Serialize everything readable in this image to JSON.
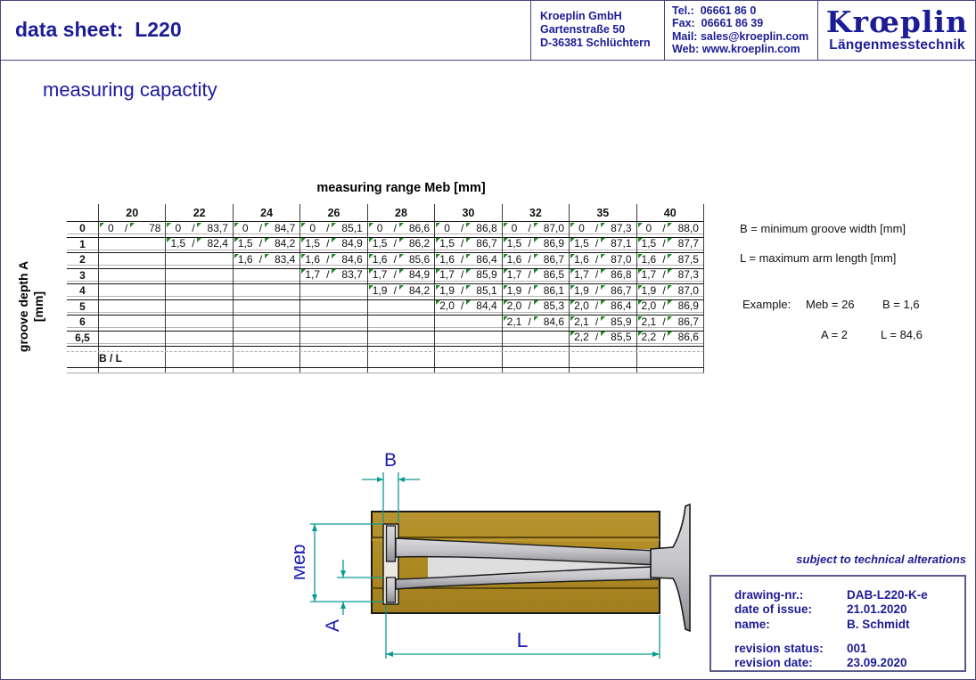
{
  "colors": {
    "navy": "#1c1c96",
    "gold": "#ae8a23",
    "teal": "#0c9a90",
    "dim_label_blue": "#1a1ab0",
    "marker_green": "#1e8a1e"
  },
  "header": {
    "title": "data sheet:  L220",
    "company_lines": [
      "Kroeplin GmbH",
      "Gartenstraße 50",
      "D-36381 Schlüchtern"
    ],
    "contact_lines": [
      "Tel.:  06661 86 0",
      "Fax:  06661 86 39",
      "Mail: sales@kroeplin.com",
      "Web: www.kroeplin.com"
    ],
    "logo_title": "Krœplin",
    "logo_subtitle": "Längenmesstechnik"
  },
  "section_title": "measuring capactity",
  "table": {
    "title": "measuring range Meb [mm]",
    "row_axis_line1": "groove depth A",
    "row_axis_line2": "[mm]",
    "columns": [
      "20",
      "22",
      "24",
      "26",
      "28",
      "30",
      "32",
      "35",
      "40"
    ],
    "rows": [
      {
        "label": "0",
        "cells": [
          [
            "0",
            "78"
          ],
          [
            "0",
            "83,7"
          ],
          [
            "0",
            "84,7"
          ],
          [
            "0",
            "85,1"
          ],
          [
            "0",
            "86,6"
          ],
          [
            "0",
            "86,8"
          ],
          [
            "0",
            "87,0"
          ],
          [
            "0",
            "87,3"
          ],
          [
            "0",
            "88,0"
          ]
        ]
      },
      {
        "label": "1",
        "cells": [
          null,
          [
            "1,5",
            "82,4"
          ],
          [
            "1,5",
            "84,2"
          ],
          [
            "1,5",
            "84,9"
          ],
          [
            "1,5",
            "86,2"
          ],
          [
            "1,5",
            "86,7"
          ],
          [
            "1,5",
            "86,9"
          ],
          [
            "1,5",
            "87,1"
          ],
          [
            "1,5",
            "87,7"
          ]
        ]
      },
      {
        "label": "2",
        "cells": [
          null,
          null,
          [
            "1,6",
            "83,4"
          ],
          [
            "1,6",
            "84,6"
          ],
          [
            "1,6",
            "85,6"
          ],
          [
            "1,6",
            "86,4"
          ],
          [
            "1,6",
            "86,7"
          ],
          [
            "1,6",
            "87,0"
          ],
          [
            "1,6",
            "87,5"
          ]
        ]
      },
      {
        "label": "3",
        "cells": [
          null,
          null,
          null,
          [
            "1,7",
            "83,7"
          ],
          [
            "1,7",
            "84,9"
          ],
          [
            "1,7",
            "85,9"
          ],
          [
            "1,7",
            "86,5"
          ],
          [
            "1,7",
            "86,8"
          ],
          [
            "1,7",
            "87,3"
          ]
        ]
      },
      {
        "label": "4",
        "cells": [
          null,
          null,
          null,
          null,
          [
            "1,9",
            "84,2"
          ],
          [
            "1,9",
            "85,1"
          ],
          [
            "1,9",
            "86,1"
          ],
          [
            "1,9",
            "86,7"
          ],
          [
            "1,9",
            "87,0"
          ]
        ]
      },
      {
        "label": "5",
        "cells": [
          null,
          null,
          null,
          null,
          null,
          [
            "2,0",
            "84,4"
          ],
          [
            "2,0",
            "85,3"
          ],
          [
            "2,0",
            "86,4"
          ],
          [
            "2,0",
            "86,9"
          ]
        ]
      },
      {
        "label": "6",
        "cells": [
          null,
          null,
          null,
          null,
          null,
          null,
          [
            "2,1",
            "84,6"
          ],
          [
            "2,1",
            "85,9"
          ],
          [
            "2,1",
            "86,7"
          ]
        ]
      },
      {
        "label": "6,5",
        "cells": [
          null,
          null,
          null,
          null,
          null,
          null,
          null,
          [
            "2,2",
            "85,5"
          ],
          [
            "2,2",
            "86,6"
          ]
        ]
      }
    ],
    "footer_label": "B / L"
  },
  "legend": {
    "b_definition": "B = minimum groove width [mm]",
    "l_definition": "L = maximum arm length [mm]",
    "example_label": "Example:",
    "example_meb": "Meb = 26",
    "example_b": "B = 1,6",
    "example_a": "A = 2",
    "example_l": "L = 84,6"
  },
  "drawing": {
    "label_b": "B",
    "label_meb": "Meb",
    "label_a": "A",
    "label_l": "L"
  },
  "footer": {
    "note": "subject to technical alterations",
    "fields": [
      {
        "label": "drawing-nr.:",
        "value": "DAB-L220-K-e"
      },
      {
        "label": "date of issue:",
        "value": "21.01.2020"
      },
      {
        "label": "name:",
        "value": "B. Schmidt"
      },
      {
        "label": "revision status:",
        "value": "001"
      },
      {
        "label": "revision date:",
        "value": "23.09.2020"
      }
    ]
  }
}
